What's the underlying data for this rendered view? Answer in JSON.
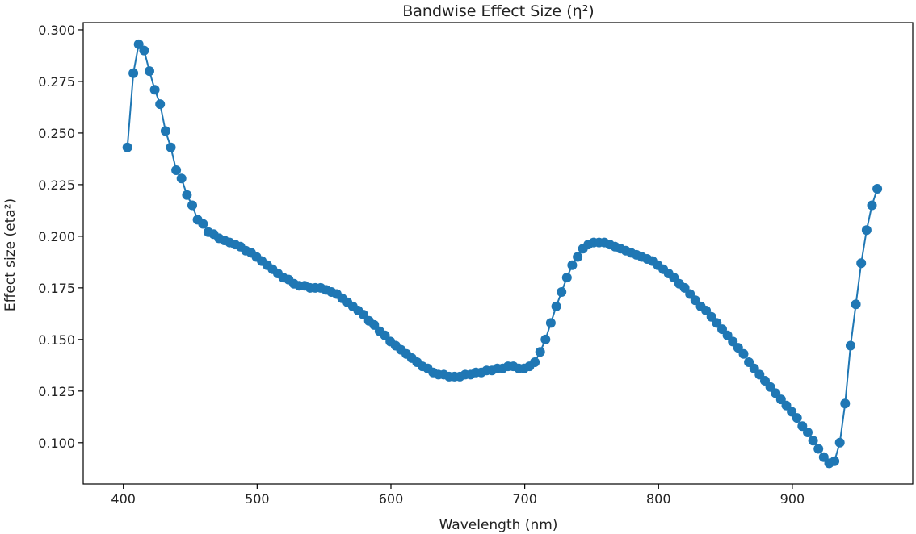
{
  "chart_data": {
    "type": "line",
    "title": "Bandwise Effect Size (η²)",
    "xlabel": "Wavelength (nm)",
    "ylabel": "Effect size (eta²)",
    "xlim": [
      370,
      990
    ],
    "ylim": [
      0.08,
      0.3035
    ],
    "xticks": [
      400,
      500,
      600,
      700,
      800,
      900
    ],
    "xtick_labels": [
      "400",
      "500",
      "600",
      "700",
      "800",
      "900"
    ],
    "yticks": [
      0.1,
      0.125,
      0.15,
      0.175,
      0.2,
      0.225,
      0.25,
      0.275,
      0.3
    ],
    "ytick_labels": [
      "0.100",
      "0.125",
      "0.150",
      "0.175",
      "0.200",
      "0.225",
      "0.250",
      "0.275",
      "0.300"
    ],
    "grid": false,
    "legend": "none",
    "marker": "circle",
    "series": [
      {
        "color": "#1f77b4",
        "x": [
          403,
          407.5,
          411.5,
          415.5,
          419.5,
          423.5,
          427.5,
          431.5,
          435.5,
          439.5,
          443.5,
          447.5,
          451.5,
          455.5,
          459.5,
          463.5,
          467.5,
          471.5,
          475.5,
          479.5,
          483.5,
          487.5,
          491.5,
          495.5,
          499.5,
          503.5,
          507.5,
          511.5,
          515.5,
          519.5,
          523.5,
          527.5,
          531.5,
          535.5,
          539.5,
          543.5,
          547.5,
          551.5,
          555.5,
          559.5,
          563.5,
          567.5,
          571.5,
          575.5,
          579.5,
          583.5,
          587.5,
          591.5,
          595.5,
          599.5,
          603.5,
          607.5,
          611.5,
          615.5,
          619.5,
          623.5,
          627.5,
          631.5,
          635.5,
          639.5,
          643.5,
          647.5,
          651.5,
          655.5,
          659.5,
          663.5,
          667.5,
          671.5,
          675.5,
          679.5,
          683.5,
          687.5,
          691.5,
          695.5,
          699.5,
          703.5,
          707.5,
          711.5,
          715.5,
          719.5,
          723.5,
          727.5,
          731.5,
          735.5,
          739.5,
          743.5,
          747.5,
          751.5,
          755.5,
          759.5,
          763.5,
          767.5,
          771.5,
          775.5,
          779.5,
          783.5,
          787.5,
          791.5,
          795.5,
          799.5,
          803.5,
          807.5,
          811.5,
          815.5,
          819.5,
          823.5,
          827.5,
          831.5,
          835.5,
          839.5,
          843.5,
          847.5,
          851.5,
          855.5,
          859.5,
          863.5,
          867.5,
          871.5,
          875.5,
          879.5,
          883.5,
          887.5,
          891.5,
          895.5,
          899.5,
          903.5,
          907.5,
          911.5,
          915.5,
          919.5,
          923.5,
          927.5,
          931.5,
          935.5,
          939.5,
          943.5,
          947.5,
          951.5,
          955.5,
          959.5,
          963.5
        ],
        "y": [
          0.243,
          0.279,
          0.293,
          0.29,
          0.28,
          0.271,
          0.264,
          0.251,
          0.243,
          0.232,
          0.228,
          0.22,
          0.215,
          0.208,
          0.206,
          0.202,
          0.201,
          0.199,
          0.198,
          0.197,
          0.196,
          0.195,
          0.193,
          0.192,
          0.19,
          0.188,
          0.186,
          0.184,
          0.182,
          0.18,
          0.179,
          0.177,
          0.176,
          0.176,
          0.175,
          0.175,
          0.175,
          0.174,
          0.173,
          0.172,
          0.17,
          0.168,
          0.166,
          0.164,
          0.162,
          0.159,
          0.157,
          0.154,
          0.152,
          0.149,
          0.147,
          0.145,
          0.143,
          0.141,
          0.139,
          0.137,
          0.136,
          0.134,
          0.133,
          0.133,
          0.132,
          0.132,
          0.132,
          0.133,
          0.133,
          0.134,
          0.134,
          0.135,
          0.135,
          0.136,
          0.136,
          0.137,
          0.137,
          0.136,
          0.136,
          0.137,
          0.139,
          0.144,
          0.15,
          0.158,
          0.166,
          0.173,
          0.18,
          0.186,
          0.19,
          0.194,
          0.196,
          0.197,
          0.197,
          0.197,
          0.196,
          0.195,
          0.194,
          0.193,
          0.192,
          0.191,
          0.19,
          0.189,
          0.188,
          0.186,
          0.184,
          0.182,
          0.18,
          0.177,
          0.175,
          0.172,
          0.169,
          0.166,
          0.164,
          0.161,
          0.158,
          0.155,
          0.152,
          0.149,
          0.146,
          0.143,
          0.139,
          0.136,
          0.133,
          0.13,
          0.127,
          0.124,
          0.121,
          0.118,
          0.115,
          0.112,
          0.108,
          0.105,
          0.101,
          0.097,
          0.093,
          0.09,
          0.091,
          0.1,
          0.119,
          0.147,
          0.167,
          0.187,
          0.203,
          0.215,
          0.223
        ]
      }
    ]
  }
}
